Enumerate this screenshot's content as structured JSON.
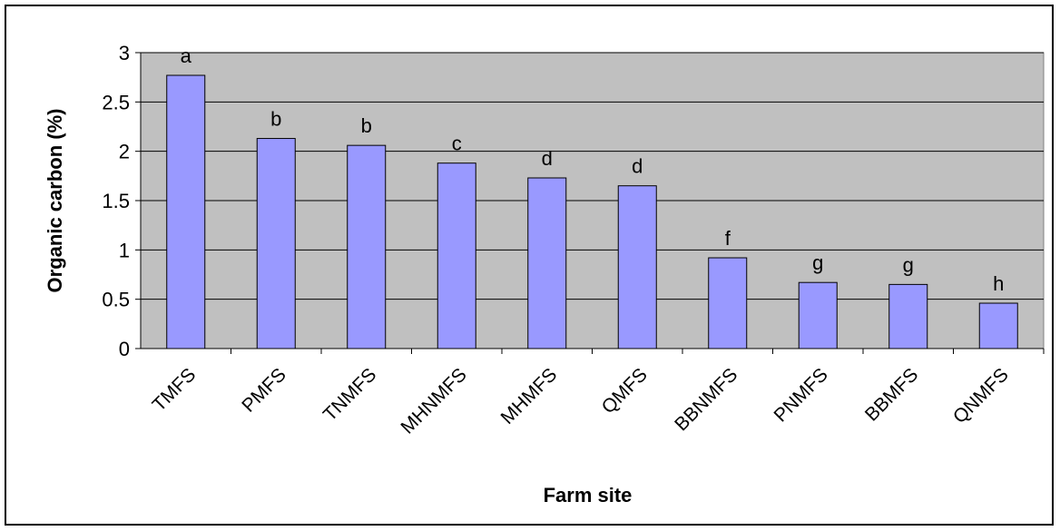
{
  "chart_data": {
    "type": "bar",
    "title": "",
    "xlabel": "Farm site",
    "ylabel": "Organic carbon (%)",
    "ylim": [
      0,
      3
    ],
    "yticks": [
      "0",
      "0.5",
      "1",
      "1.5",
      "2",
      "2.5",
      "3"
    ],
    "grid": true,
    "legend": "none",
    "categories": [
      "TMFS",
      "PMFS",
      "TNMFS",
      "MHNMFS",
      "MHMFS",
      "QMFS",
      "BBNMFS",
      "PNMFS",
      "BBMFS",
      "QNMFS"
    ],
    "values": [
      2.77,
      2.13,
      2.06,
      1.88,
      1.73,
      1.65,
      0.92,
      0.67,
      0.65,
      0.46
    ],
    "significance_labels": [
      "a",
      "b",
      "b",
      "c",
      "d",
      "d",
      "f",
      "g",
      "g",
      "h"
    ],
    "colors": {
      "bar_fill": "#9999ff",
      "bar_stroke": "#000000",
      "plot_background": "#c0c0c0",
      "gridline": "#000000"
    }
  }
}
